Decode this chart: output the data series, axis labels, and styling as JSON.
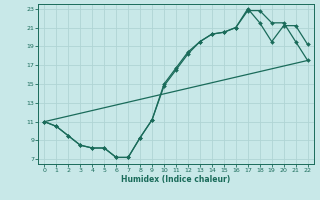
{
  "title": "",
  "xlabel": "Humidex (Indice chaleur)",
  "bg_color": "#c8e8e8",
  "grid_color": "#b0d4d4",
  "line_color": "#1a6b5a",
  "xlim": [
    -0.5,
    22.5
  ],
  "ylim": [
    6.5,
    23.5
  ],
  "xticks": [
    0,
    1,
    2,
    3,
    4,
    5,
    6,
    7,
    8,
    9,
    10,
    11,
    12,
    13,
    14,
    15,
    16,
    17,
    18,
    19,
    20,
    21,
    22
  ],
  "yticks": [
    7,
    9,
    11,
    13,
    15,
    17,
    19,
    21,
    23
  ],
  "line1_x": [
    0,
    1,
    2,
    3,
    4,
    5,
    6,
    7,
    8,
    9,
    10,
    11,
    12,
    13,
    14,
    15,
    16,
    17,
    18,
    19,
    20,
    21,
    22
  ],
  "line1_y": [
    11,
    10.5,
    9.5,
    8.5,
    8.2,
    8.2,
    7.2,
    7.2,
    9.3,
    11.2,
    14.8,
    16.5,
    18.2,
    19.5,
    20.3,
    20.5,
    21.0,
    22.8,
    22.8,
    21.5,
    21.5,
    19.5,
    17.5
  ],
  "line2_x": [
    0,
    1,
    2,
    3,
    4,
    5,
    6,
    7,
    8,
    9,
    10,
    11,
    12,
    13,
    14,
    15,
    16,
    17,
    18,
    19,
    20,
    21,
    22
  ],
  "line2_y": [
    11,
    10.5,
    9.5,
    8.5,
    8.2,
    8.2,
    7.2,
    7.2,
    9.3,
    11.2,
    15.0,
    16.7,
    18.4,
    19.5,
    20.3,
    20.5,
    21.0,
    23.0,
    21.5,
    19.5,
    21.2,
    21.2,
    19.2
  ],
  "line3_x": [
    0,
    22
  ],
  "line3_y": [
    11,
    17.5
  ]
}
